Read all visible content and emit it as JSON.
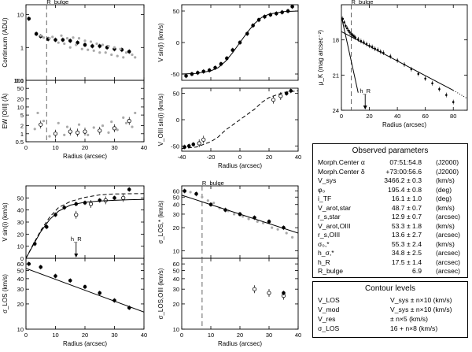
{
  "chart_data": [
    {
      "id": "continuum",
      "type": "scatter",
      "ylabel": "Continuum (ADU)",
      "xlim": [
        0,
        40
      ],
      "ylim": [
        0.1,
        20
      ],
      "ylog": true,
      "yticks": [
        0.1,
        1,
        10
      ],
      "yticklabels": [
        "0.1",
        "1",
        "10"
      ],
      "annotations": [
        "R_bulge"
      ],
      "bulge_x": 7,
      "series": [
        {
          "role": "binned",
          "style": "filled",
          "x": [
            1,
            3.5,
            5,
            7.5,
            10,
            12.5,
            15,
            17.5,
            20,
            22.5,
            25,
            27.5,
            30,
            32.5,
            35
          ],
          "y": [
            7.5,
            2.6,
            2.2,
            1.8,
            1.7,
            1.7,
            1.6,
            1.4,
            1.2,
            1.1,
            1.1,
            1.0,
            0.9,
            0.85,
            0.75
          ]
        },
        {
          "role": "individual",
          "style": "gray",
          "x": [
            5,
            6,
            8,
            9,
            11,
            12,
            13,
            14,
            15,
            16,
            17,
            18,
            19,
            20,
            21,
            22,
            23,
            24,
            25,
            26,
            27,
            28,
            29,
            30,
            31,
            32,
            33,
            34,
            36,
            37
          ],
          "y": [
            2.3,
            2.0,
            1.9,
            2.1,
            1.4,
            2.3,
            1.3,
            1.9,
            1.0,
            2.0,
            1.2,
            1.9,
            0.9,
            1.6,
            0.85,
            1.5,
            0.8,
            1.3,
            0.7,
            1.2,
            0.7,
            1.1,
            0.6,
            1.0,
            0.55,
            0.9,
            0.5,
            0.7,
            0.6,
            0.5
          ]
        }
      ]
    },
    {
      "id": "ew_oiii",
      "type": "scatter",
      "xlabel": "Radius (arcsec)",
      "ylabel": "EW [OIII] (Å)",
      "xlim": [
        0,
        40
      ],
      "ylim": [
        0.5,
        100
      ],
      "ylog": true,
      "xticks": [
        0,
        10,
        20,
        30,
        40
      ],
      "yticks": [
        0.5,
        1,
        2,
        5,
        10,
        20,
        50,
        100
      ],
      "yticklabels": [
        "0.5",
        "1",
        "2",
        "5",
        "10",
        "20",
        "50",
        "100"
      ],
      "bulge_x": 7,
      "series": [
        {
          "role": "binned",
          "style": "open",
          "x": [
            5,
            10,
            15,
            17.5,
            20,
            25,
            30,
            35
          ],
          "y": [
            2.2,
            1.0,
            1.2,
            1.1,
            1.2,
            1.3,
            1.6,
            3.0
          ]
        },
        {
          "role": "individual",
          "style": "gray",
          "x": [
            3,
            4,
            6,
            8,
            11,
            13,
            14,
            18,
            21,
            23,
            26,
            28,
            29,
            31,
            33,
            34,
            36,
            37
          ],
          "y": [
            1.5,
            6.0,
            3.0,
            0.8,
            2.5,
            0.9,
            1.8,
            2.2,
            0.9,
            1.7,
            2.0,
            1.1,
            2.8,
            1.4,
            4.0,
            2.5,
            1.8,
            6.0
          ]
        }
      ]
    },
    {
      "id": "vstar",
      "type": "scatter",
      "ylabel": "V sin(i) (km/s)",
      "xlim": [
        -40,
        40
      ],
      "ylim": [
        -60,
        60
      ],
      "yticks": [
        -50,
        0,
        50
      ],
      "series": [
        {
          "role": "data",
          "style": "filled",
          "x": [
            -37,
            -33,
            -29,
            -25,
            -21,
            -17,
            -13,
            -9,
            -5,
            0,
            5,
            9,
            13,
            17,
            21,
            25,
            29,
            33,
            36
          ],
          "y": [
            -53,
            -50,
            -48,
            -46,
            -44,
            -40,
            -34,
            -25,
            -12,
            0,
            14,
            27,
            36,
            41,
            44,
            46,
            48,
            50,
            57
          ]
        },
        {
          "role": "model",
          "style": "line",
          "x": [
            -40,
            -30,
            -20,
            -15,
            -10,
            -5,
            0,
            5,
            10,
            15,
            20,
            30,
            40
          ],
          "y": [
            -50,
            -49,
            -45,
            -40,
            -30,
            -16,
            0,
            16,
            30,
            40,
            45,
            49,
            50
          ]
        }
      ]
    },
    {
      "id": "vgas",
      "type": "scatter",
      "xlabel": "Radius (arcsec)",
      "ylabel": "V_OIII sin(i) (km/s)",
      "xlim": [
        -40,
        40
      ],
      "ylim": [
        -60,
        60
      ],
      "xticks": [
        -40,
        -20,
        0,
        20,
        40
      ],
      "yticks": [
        -50,
        0,
        50
      ],
      "series": [
        {
          "role": "data-filled",
          "style": "filled",
          "x": [
            -38,
            -35,
            -32,
            32,
            35
          ],
          "y": [
            -52,
            -50,
            -47,
            50,
            55
          ]
        },
        {
          "role": "data-open",
          "style": "open",
          "x": [
            -28,
            -25,
            23,
            28
          ],
          "y": [
            -45,
            -38,
            38,
            45
          ]
        },
        {
          "role": "model",
          "style": "dashed",
          "x": [
            -40,
            -30,
            -20,
            -15,
            -10,
            -5,
            0,
            5,
            10,
            15,
            20,
            30,
            40
          ],
          "y": [
            -55,
            -52,
            -42,
            -33,
            -20,
            -10,
            0,
            10,
            20,
            33,
            42,
            52,
            55
          ]
        }
      ]
    },
    {
      "id": "vsini",
      "type": "scatter",
      "ylabel": "V sin(i) (km/s)",
      "xlim": [
        0,
        40
      ],
      "ylim": [
        0,
        60
      ],
      "yticks": [
        0,
        10,
        20,
        30,
        40,
        50
      ],
      "annotations": [
        "h_R"
      ],
      "hr_x": 17,
      "series": [
        {
          "role": "star",
          "style": "filled",
          "x": [
            3,
            7,
            10,
            13,
            17,
            20,
            25,
            30,
            35
          ],
          "y": [
            12,
            26,
            36,
            42,
            45,
            46,
            48,
            50,
            57
          ]
        },
        {
          "role": "gas",
          "style": "open",
          "x": [
            17,
            22,
            27,
            33
          ],
          "y": [
            36,
            45,
            48,
            50
          ]
        },
        {
          "role": "model-star",
          "style": "line",
          "x": [
            0,
            2,
            5,
            8,
            11,
            15,
            20,
            25,
            30,
            35,
            40
          ],
          "y": [
            0,
            9,
            22,
            32,
            39,
            44,
            46.5,
            47.5,
            48,
            48.5,
            48.7
          ]
        },
        {
          "role": "model-gas",
          "style": "dashed",
          "x": [
            0,
            2,
            5,
            8,
            11,
            15,
            20,
            25,
            30,
            35,
            40
          ],
          "y": [
            0,
            9.5,
            23,
            34,
            42,
            47,
            50.5,
            52.5,
            53.3,
            53.5,
            53.6
          ]
        }
      ]
    },
    {
      "id": "sigma_los",
      "type": "scatter",
      "xlabel": "Radius (arcsec)",
      "ylabel": "σ_LOS (km/s)",
      "xlim": [
        0,
        40
      ],
      "ylim": [
        10,
        70
      ],
      "ylog": true,
      "xticks": [
        0,
        10,
        20,
        30,
        40
      ],
      "yticks": [
        10,
        20,
        30,
        40,
        50,
        60
      ],
      "hr_x": 17,
      "series": [
        {
          "role": "star",
          "style": "filled",
          "x": [
            1,
            5,
            10,
            15,
            20,
            25,
            30,
            35
          ],
          "y": [
            60,
            55,
            43,
            38,
            32,
            27,
            22,
            18
          ]
        },
        {
          "role": "fit",
          "style": "line",
          "x": [
            0,
            40
          ],
          "y": [
            53,
            16
          ]
        }
      ]
    },
    {
      "id": "sigma_star",
      "type": "scatter",
      "ylabel": "σ_LOS,* (km/s)",
      "xlim": [
        0,
        40
      ],
      "ylim": [
        8,
        70
      ],
      "ylog": true,
      "yticks": [
        10,
        20,
        30,
        40,
        50,
        60
      ],
      "annotations": [
        "R_bulge"
      ],
      "bulge_x": 7,
      "series": [
        {
          "role": "binned",
          "style": "filled",
          "x": [
            1,
            5,
            10,
            15,
            20,
            25,
            30,
            35
          ],
          "y": [
            60,
            55,
            40,
            34,
            30,
            27,
            24,
            20
          ]
        },
        {
          "role": "individual",
          "style": "gray",
          "x": [
            3,
            7,
            9,
            11,
            13,
            16,
            18,
            21,
            23,
            26,
            28,
            31,
            33,
            36,
            38
          ],
          "y": [
            58,
            50,
            45,
            42,
            36,
            33,
            30,
            28,
            26,
            24,
            23,
            20,
            19,
            17,
            15
          ]
        },
        {
          "role": "fit",
          "style": "line",
          "x": [
            0,
            40
          ],
          "y": [
            53,
            17
          ]
        }
      ]
    },
    {
      "id": "sigma_gas",
      "type": "scatter",
      "xlabel": "Radius (arcsec)",
      "ylabel": "σ_LOS,OIII (km/s)",
      "xlim": [
        0,
        40
      ],
      "ylim": [
        10,
        70
      ],
      "ylog": true,
      "xticks": [
        0,
        10,
        20,
        30,
        40
      ],
      "yticks": [
        10,
        20,
        30,
        40,
        50,
        60
      ],
      "bulge_x": 7,
      "series": [
        {
          "role": "open",
          "style": "open",
          "x": [
            25,
            30,
            35
          ],
          "y": [
            30,
            27,
            25
          ]
        },
        {
          "role": "filled",
          "style": "filled",
          "x": [
            35
          ],
          "y": [
            27
          ]
        }
      ]
    },
    {
      "id": "surface_brightness",
      "type": "scatter",
      "xlabel": "Radius (arcsec)",
      "ylabel": "μ_K (mag arcsec⁻²)",
      "xlim": [
        0,
        90
      ],
      "ylim": [
        24,
        15
      ],
      "yinverted": true,
      "xticks": [
        0,
        20,
        40,
        60,
        80
      ],
      "yticks": [
        18,
        21,
        24
      ],
      "annotations": [
        "R_bulge",
        "h_R"
      ],
      "bulge_x": 7,
      "hr_x": 17,
      "series": [
        {
          "role": "profile",
          "style": "filled",
          "x": [
            1,
            2,
            3,
            4,
            5,
            6,
            7,
            8,
            9,
            10,
            12,
            14,
            16,
            18,
            20,
            22,
            24,
            26,
            28,
            30,
            35,
            40,
            45,
            50,
            55,
            60,
            65,
            70,
            75,
            80
          ],
          "y": [
            16.2,
            16.5,
            16.8,
            17.0,
            17.2,
            17.35,
            17.5,
            17.6,
            17.7,
            17.8,
            17.95,
            18.1,
            18.2,
            18.35,
            18.5,
            18.6,
            18.75,
            18.85,
            19.0,
            19.1,
            19.4,
            19.75,
            20.1,
            20.5,
            20.9,
            21.3,
            21.7,
            22.2,
            22.7,
            23.3
          ]
        },
        {
          "role": "disk-fit",
          "style": "line",
          "x": [
            0,
            80
          ],
          "y": [
            17.3,
            22.3
          ]
        },
        {
          "role": "bulge-fit",
          "style": "line",
          "x": [
            0,
            12
          ],
          "y": [
            16.0,
            22.5
          ]
        },
        {
          "role": "extrapolation",
          "style": "dotted",
          "x": [
            80,
            90
          ],
          "y": [
            22.3,
            23.0
          ]
        }
      ]
    }
  ],
  "params": {
    "title": "Observed parameters",
    "rows": [
      {
        "label": "Morph.Center α",
        "value": "07:51:54.8",
        "unit": "(J2000)"
      },
      {
        "label": "Morph.Center δ",
        "value": "+73:00:56.6",
        "unit": "(J2000)"
      },
      {
        "label": "V_sys",
        "value": "3466.2 ± 0.3",
        "unit": "(km/s)"
      },
      {
        "label": "φ₀",
        "value": "195.4 ± 0.8",
        "unit": "(deg)"
      },
      {
        "label": "i_TF",
        "value": "16.1 ± 1.0",
        "unit": "(deg)"
      },
      {
        "label": "V_arot,star",
        "value": "48.7 ± 0.7",
        "unit": "(km/s)"
      },
      {
        "label": "r_s,star",
        "value": "12.9 ± 0.7",
        "unit": "(arcsec)"
      },
      {
        "label": "V_arot,OIII",
        "value": "53.3 ± 1.8",
        "unit": "(km/s)"
      },
      {
        "label": "r_s,OIII",
        "value": "13.6 ± 2.7",
        "unit": "(arcsec)"
      },
      {
        "label": "σ₀,*",
        "value": "55.3 ± 2.4",
        "unit": "(km/s)"
      },
      {
        "label": "h_σ,*",
        "value": "34.8 ± 2.5",
        "unit": "(arcsec)"
      },
      {
        "label": "h_R",
        "value": "17.5 ± 1.4",
        "unit": "(arcsec)"
      },
      {
        "label": "R_bulge",
        "value": "6.9",
        "unit": "(arcsec)"
      }
    ]
  },
  "contours": {
    "title": "Contour levels",
    "rows": [
      {
        "label": "V_LOS",
        "expr": "V_sys ± n×10  (km/s)"
      },
      {
        "label": "V_mod",
        "expr": "V_sys ± n×10  (km/s)"
      },
      {
        "label": "V_res",
        "expr": "± n×5  (km/s)"
      },
      {
        "label": "σ_LOS",
        "expr": "16 + n×8  (km/s)"
      }
    ]
  }
}
